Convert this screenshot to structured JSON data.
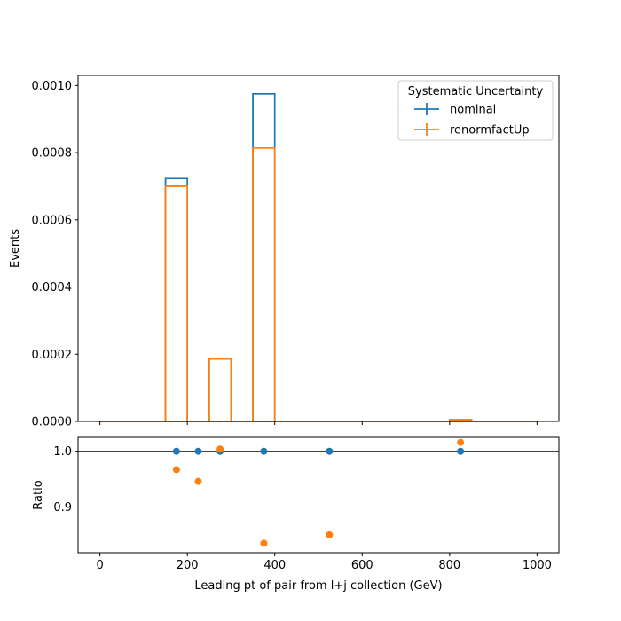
{
  "chart_data": [
    {
      "type": "histogram",
      "panel": "main",
      "ylabel": "Events",
      "xlim": [
        -50,
        1050
      ],
      "ylim": [
        0,
        0.00103
      ],
      "yticks": [
        "0.0000",
        "0.0002",
        "0.0004",
        "0.0006",
        "0.0008",
        "0.0010"
      ],
      "ytick_values": [
        0,
        0.0002,
        0.0004,
        0.0006,
        0.0008,
        0.001
      ],
      "bin_edges": [
        0,
        50,
        100,
        150,
        200,
        250,
        300,
        350,
        400,
        450,
        500,
        550,
        600,
        650,
        700,
        750,
        800,
        850,
        900,
        950,
        1000
      ],
      "series": [
        {
          "name": "nominal",
          "color": "#1f77b4",
          "values": [
            0,
            0,
            0,
            0.000723,
            0,
            0.000186,
            0,
            0.000975,
            0,
            0,
            0,
            0,
            0,
            0,
            0,
            0,
            5e-06,
            0,
            0,
            0
          ]
        },
        {
          "name": "renormfactUp",
          "color": "#ff7f0e",
          "values": [
            0,
            0,
            0,
            0.0007,
            0,
            0.000186,
            0,
            0.000814,
            0,
            0,
            0,
            0,
            0,
            0,
            0,
            0,
            5e-06,
            0,
            0,
            0
          ]
        }
      ],
      "legend": {
        "title": "Systematic Uncertainty",
        "placement": "top-right"
      }
    },
    {
      "type": "scatter",
      "panel": "ratio",
      "xlabel": "Leading pt of pair from l+j collection (GeV)",
      "ylabel": "Ratio",
      "xlim": [
        -50,
        1050
      ],
      "ylim": [
        0.818,
        1.025
      ],
      "xticks": [
        "0",
        "200",
        "400",
        "600",
        "800",
        "1000"
      ],
      "xtick_values": [
        0,
        200,
        400,
        600,
        800,
        1000
      ],
      "yticks": [
        "0.9",
        "1.0"
      ],
      "ytick_values": [
        0.9,
        1.0
      ],
      "reference_line": 1.0,
      "series": [
        {
          "name": "nominal",
          "color": "#1f77b4",
          "x": [
            175,
            225,
            275,
            375,
            525,
            825
          ],
          "y": [
            1.0,
            1.0,
            1.0,
            1.0,
            1.0,
            1.0
          ]
        },
        {
          "name": "renormfactUp",
          "color": "#ff7f0e",
          "x": [
            175,
            225,
            275,
            375,
            525,
            825
          ],
          "y": [
            0.967,
            0.946,
            1.004,
            0.835,
            0.85,
            1.016
          ]
        }
      ]
    }
  ]
}
